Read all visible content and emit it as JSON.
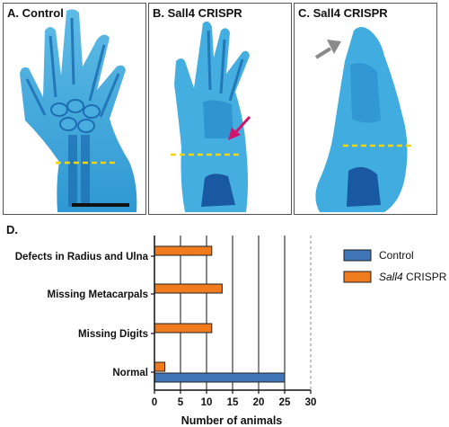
{
  "panels": [
    {
      "label": "A. Control"
    },
    {
      "label": "B. Sall4 CRISPR"
    },
    {
      "label": "C. Sall4 CRISPR"
    }
  ],
  "chart_panel_label": "D.",
  "colors": {
    "control": "#3f74b8",
    "sall4": "#f07b1c",
    "stain": "#3aa8dc",
    "stain_dark": "#1b6fb0",
    "dashed_line": "#f5d40a",
    "arrow_pink": "#d4146c",
    "arrow_gray": "#8a8a8a"
  },
  "chart_data": {
    "type": "bar",
    "orientation": "horizontal",
    "categories": [
      "Defects in Radius and Ulna",
      "Missing Metacarpals",
      "Missing Digits",
      "Normal"
    ],
    "series": [
      {
        "name": "Control",
        "values": [
          0,
          0,
          0,
          25
        ]
      },
      {
        "name": "CRISPR",
        "values": [
          11,
          13,
          11,
          2
        ]
      }
    ],
    "legend": {
      "control_label": "Control",
      "sall4_italic": "Sall4",
      "sall4_rest": " CRISPR",
      "placement": "right"
    },
    "xlabel": "Number of animals",
    "xlim": [
      0,
      30
    ],
    "xticks": [
      0,
      5,
      10,
      15,
      20,
      25,
      30
    ],
    "xtick_labels": [
      "0",
      "5",
      "10",
      "15",
      "20",
      "25",
      "30"
    ],
    "grid": "vertical-solid",
    "dashed_reference_at": 30
  }
}
